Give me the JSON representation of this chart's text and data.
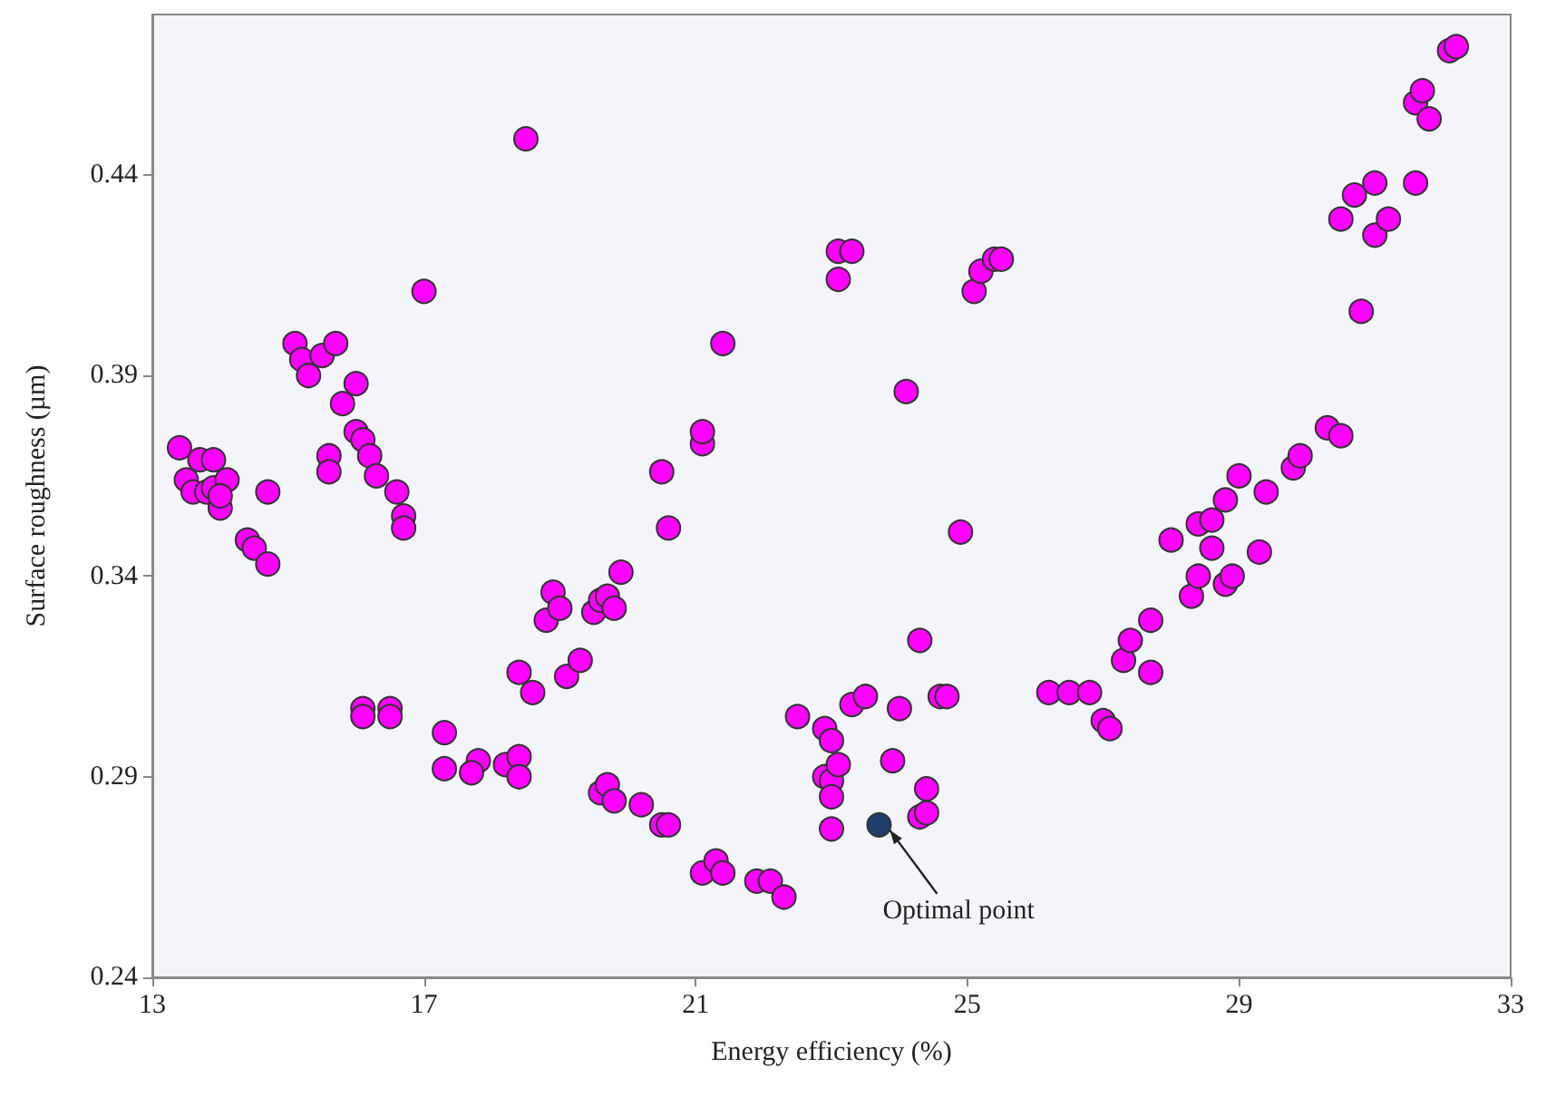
{
  "chart_data": {
    "type": "scatter",
    "xlabel": "Energy efficiency (%)",
    "ylabel": "Surface roughness (µm)",
    "xlim": [
      13,
      33
    ],
    "xticks": [
      13,
      17,
      21,
      25,
      29,
      33
    ],
    "ylim": [
      0.24,
      0.48
    ],
    "yticks": [
      0.24,
      0.29,
      0.34,
      0.39,
      0.44
    ],
    "grid": false,
    "marker": "circle",
    "annotations": [
      {
        "text": "Optimal point",
        "x": 23.7,
        "y": 0.278
      }
    ],
    "series": [
      {
        "color": "#ff00ff",
        "x": [
          13.4,
          13.5,
          13.6,
          13.7,
          13.9,
          13.8,
          13.9,
          14.0,
          14.1,
          14.0,
          14.7,
          14.4,
          14.5,
          14.7,
          15.1,
          15.2,
          15.3,
          15.5,
          15.7,
          16.0,
          15.8,
          15.6,
          15.6,
          16.0,
          16.1,
          16.2,
          16.3,
          16.6,
          16.7,
          16.7,
          17.0,
          18.5,
          16.1,
          16.1,
          16.5,
          16.5,
          17.3,
          17.3,
          17.8,
          17.7,
          18.2,
          18.4,
          18.4,
          18.4,
          18.6,
          18.9,
          18.8,
          19.0,
          19.1,
          19.3,
          19.5,
          19.6,
          19.7,
          19.8,
          19.9,
          19.6,
          19.7,
          19.8,
          20.2,
          20.5,
          20.6,
          20.5,
          20.6,
          21.1,
          21.1,
          21.4,
          21.1,
          21.3,
          21.4,
          21.9,
          22.1,
          22.3,
          22.5,
          22.9,
          23.0,
          22.9,
          23.0,
          23.0,
          23.0,
          23.1,
          23.3,
          23.5,
          23.1,
          23.3,
          23.1,
          24.0,
          23.9,
          24.1,
          24.3,
          24.4,
          24.3,
          24.4,
          24.6,
          24.7,
          24.9,
          25.1,
          25.2,
          25.4,
          25.5,
          26.2,
          26.5,
          26.8,
          27.0,
          27.1,
          27.3,
          27.4,
          27.7,
          27.7,
          28.0,
          28.3,
          28.4,
          28.4,
          28.6,
          28.6,
          28.8,
          28.8,
          28.9,
          29.0,
          29.3,
          29.4,
          29.8,
          29.9,
          30.3,
          30.5,
          30.5,
          30.7,
          31.0,
          30.8,
          31.0,
          31.2,
          31.6,
          31.6,
          31.7,
          31.8,
          32.1,
          32.2
        ],
        "values": [
          0.372,
          0.364,
          0.361,
          0.369,
          0.369,
          0.361,
          0.362,
          0.357,
          0.364,
          0.36,
          0.361,
          0.349,
          0.347,
          0.343,
          0.398,
          0.394,
          0.39,
          0.395,
          0.398,
          0.388,
          0.383,
          0.37,
          0.366,
          0.376,
          0.374,
          0.37,
          0.365,
          0.361,
          0.355,
          0.352,
          0.411,
          0.449,
          0.307,
          0.305,
          0.307,
          0.305,
          0.301,
          0.292,
          0.294,
          0.291,
          0.293,
          0.295,
          0.29,
          0.316,
          0.311,
          0.336,
          0.329,
          0.332,
          0.315,
          0.319,
          0.331,
          0.334,
          0.335,
          0.332,
          0.341,
          0.286,
          0.288,
          0.284,
          0.283,
          0.278,
          0.278,
          0.366,
          0.352,
          0.373,
          0.376,
          0.398,
          0.266,
          0.269,
          0.266,
          0.264,
          0.264,
          0.26,
          0.305,
          0.302,
          0.299,
          0.29,
          0.289,
          0.285,
          0.277,
          0.293,
          0.308,
          0.31,
          0.421,
          0.421,
          0.414,
          0.307,
          0.294,
          0.386,
          0.324,
          0.287,
          0.28,
          0.281,
          0.31,
          0.31,
          0.351,
          0.411,
          0.416,
          0.419,
          0.419,
          0.311,
          0.311,
          0.311,
          0.304,
          0.302,
          0.319,
          0.324,
          0.329,
          0.316,
          0.349,
          0.335,
          0.34,
          0.353,
          0.354,
          0.347,
          0.359,
          0.338,
          0.34,
          0.365,
          0.346,
          0.361,
          0.367,
          0.37,
          0.377,
          0.375,
          0.429,
          0.435,
          0.438,
          0.406,
          0.425,
          0.429,
          0.438,
          0.458,
          0.461,
          0.454,
          0.471,
          0.472
        ]
      },
      {
        "color": "#1f3f6b",
        "x": [
          23.7
        ],
        "values": [
          0.278
        ]
      }
    ]
  }
}
